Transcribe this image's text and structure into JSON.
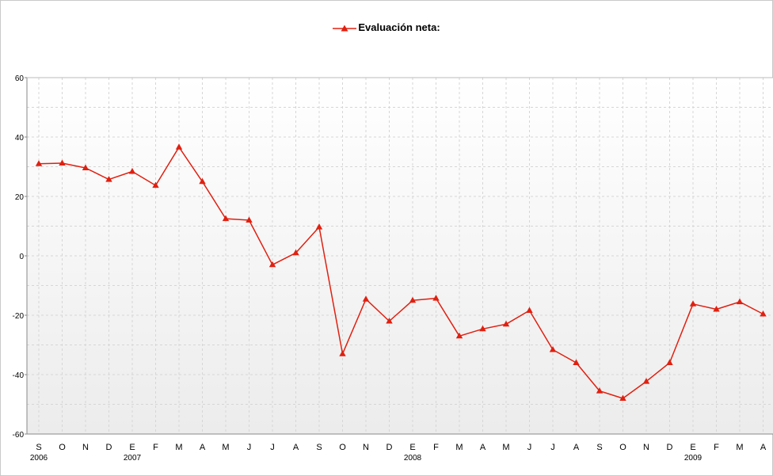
{
  "chart_data": {
    "type": "line",
    "title": "",
    "xlabel": "",
    "ylabel": "",
    "ylim": [
      -60,
      60
    ],
    "yticks": [
      60,
      40,
      20,
      0,
      -20,
      -40,
      -60
    ],
    "grid": true,
    "legend_position": "top-center",
    "categories": [
      "S",
      "O",
      "N",
      "D",
      "E",
      "F",
      "M",
      "A",
      "M",
      "J",
      "J",
      "A",
      "S",
      "O",
      "N",
      "D",
      "E",
      "F",
      "M",
      "A",
      "M",
      "J",
      "J",
      "A",
      "S",
      "O",
      "N",
      "D",
      "E",
      "F",
      "M",
      "A"
    ],
    "year_labels": [
      {
        "index": 0,
        "label": "2006"
      },
      {
        "index": 4,
        "label": "2007"
      },
      {
        "index": 16,
        "label": "2008"
      },
      {
        "index": 28,
        "label": "2009"
      }
    ],
    "series": [
      {
        "name": "Evaluación neta:",
        "color": "#e02010",
        "marker": "triangle",
        "values": [
          31,
          31.2,
          29.6,
          25.7,
          28.4,
          23.7,
          36.6,
          25,
          12.5,
          12,
          -3,
          1,
          9.7,
          -33,
          -14.6,
          -22,
          -15,
          -14.3,
          -27,
          -24.6,
          -23,
          -18.4,
          -31.6,
          -36,
          -45.5,
          -48,
          -42.3,
          -36,
          -16.2,
          -18,
          -15.5,
          -19.6
        ]
      }
    ]
  }
}
